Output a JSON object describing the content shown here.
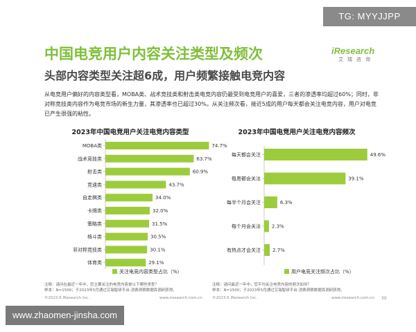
{
  "tg_badge": "TG: MYYJJPP",
  "title": "中国电竞用户内容关注类型及频次",
  "subtitle": "头部内容类型关注超6成，用户频繁接触电竞内容",
  "logo": {
    "brand": "iResearch",
    "sub": "艾瑞咨询"
  },
  "description": "从电竞用户偏好的内容类型看，MOBA类、战术竞技类和射击类电竞内容仍最受到电竞用户的喜爱，三者的渗透率均超过60%；同时，非对称竞技类内容作为电竞市场的新生力量，其渗透率也已超过30%。从关注频次看，接近5成的用户每天都会关注电竞内容，用户对电竞已产生很强的粘性。",
  "colors": {
    "bar": "#9ccc3c",
    "title": "#7fbf3a"
  },
  "chart_data": [
    {
      "type": "bar",
      "orientation": "horizontal",
      "title": "2023年中国电竞用户关注电竞内容类型",
      "categories": [
        "MOBA类",
        "战术竞技类",
        "射击类",
        "竞速类",
        "自走棋类",
        "卡牌类",
        "策略类",
        "格斗类",
        "非对称竞技类",
        "体育类"
      ],
      "series": [
        {
          "name": "关注电竞内容类型占比（%）",
          "values": [
            74.7,
            63.7,
            60.9,
            43.7,
            34.0,
            32.0,
            31.5,
            30.5,
            30.1,
            29.1
          ]
        }
      ],
      "value_labels": [
        "74.7%",
        "63.7%",
        "60.9%",
        "43.7%",
        "34.0%",
        "32.0%",
        "31.5%",
        "30.5%",
        "30.1%",
        "29.1%"
      ],
      "xlim": [
        0,
        80
      ],
      "legend": "bottom",
      "grid": false
    },
    {
      "type": "bar",
      "orientation": "horizontal",
      "title": "2023年中国电竞用户关注电竞内容频次",
      "categories": [
        "每天都会关注",
        "每周都会关注",
        "每半个月会关注",
        "每个月会关注",
        "有热点才会关注"
      ],
      "series": [
        {
          "name": "用户电竞关注频次占比（%）",
          "values": [
            49.6,
            39.1,
            6.3,
            2.3,
            2.7
          ]
        }
      ],
      "value_labels": [
        "49.6%",
        "39.1%",
        "6.3%",
        "2.3%",
        "2.7%"
      ],
      "xlim": [
        0,
        55
      ],
      "legend": "bottom",
      "grid": false
    }
  ],
  "notes": {
    "left": [
      "注释：请问在最近一年中，您主要关注的电竞内容是以下哪些类型？",
      "样本：N=1500；于2023年5月通过艾瑞智研平台-消费洞察数据库调研获得。"
    ],
    "right": [
      "注释：请问最近一年中，您平均关注电竞内容的频次如何？",
      "样本：N=1500；于2023年5月通过艾瑞智研平台-消费洞察数据库调研获得。"
    ]
  },
  "footer": {
    "copyright": "©2023.6 iResearch Inc.",
    "site": "www.iresearch.com.cn",
    "page": "30"
  },
  "watermark": "www.zhaomen-jinsha.com"
}
